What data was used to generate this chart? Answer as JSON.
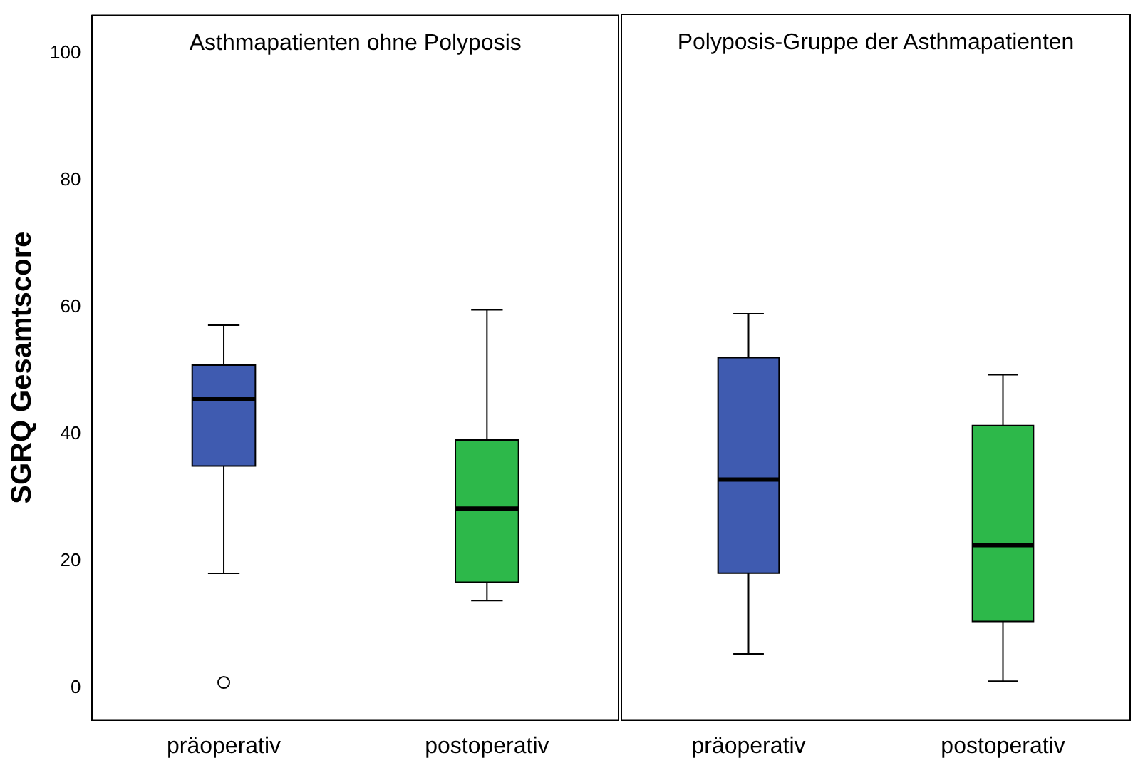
{
  "chart_data": [
    {
      "type": "box",
      "title": "Asthmapatienten ohne Polyposis",
      "ylabel": "SGRQ Gesamtscore",
      "categories": [
        "präoperativ",
        "postoperativ"
      ],
      "colors": [
        "#3f5bb0",
        "#2db84a"
      ],
      "boxes": [
        {
          "low": 18.1,
          "q1": 35.0,
          "median": 45.5,
          "q3": 50.9,
          "high": 57.2,
          "outliers": [
            0.9
          ]
        },
        {
          "low": 13.8,
          "q1": 16.7,
          "median": 28.3,
          "q3": 39.1,
          "high": 59.6
        }
      ],
      "ylim": [
        -5,
        106
      ],
      "yticks": [
        0,
        20,
        40,
        60,
        80,
        100
      ]
    },
    {
      "type": "box",
      "title": "Polyposis-Gruppe der Asthmapatienten",
      "categories": [
        "präoperativ",
        "postoperativ"
      ],
      "colors": [
        "#3f5bb0",
        "#2db84a"
      ],
      "boxes": [
        {
          "low": 5.4,
          "q1": 18.1,
          "median": 32.8,
          "q3": 52.0,
          "high": 58.9
        },
        {
          "low": 1.1,
          "q1": 10.5,
          "median": 22.5,
          "q3": 41.3,
          "high": 49.3
        }
      ],
      "ylim": [
        -5,
        106
      ],
      "yticks": [
        0,
        20,
        40,
        60,
        80,
        100
      ],
      "tick_labels": "x"
    }
  ]
}
